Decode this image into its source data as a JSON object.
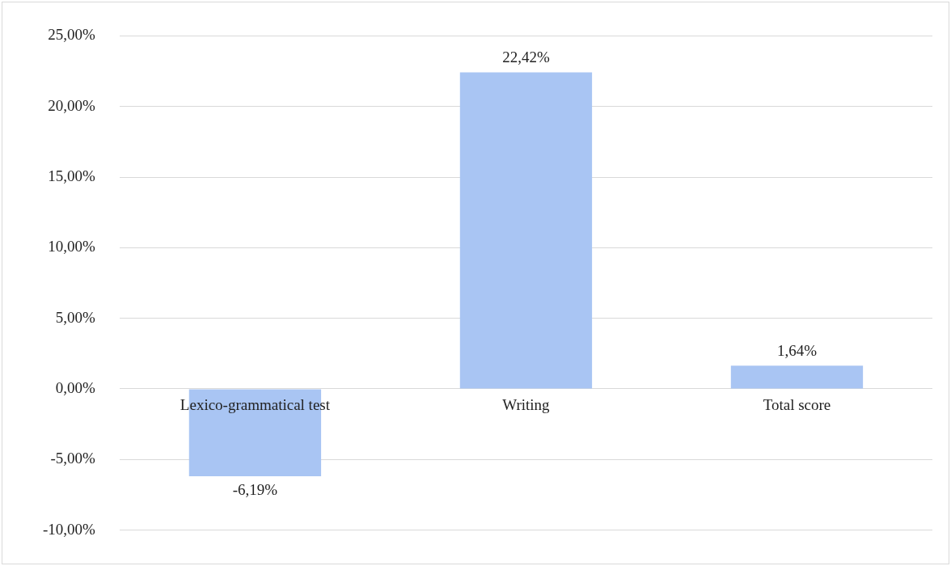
{
  "chart_data": {
    "type": "bar",
    "categories": [
      "Lexico-grammatical test",
      "Writing",
      "Total score"
    ],
    "values": [
      -6.19,
      22.42,
      1.64
    ],
    "color": "#a9c5f3",
    "value_labels": [
      "-6,19%",
      "22,42%",
      "1,64%"
    ],
    "ylim": [
      -10,
      25
    ],
    "yticks": [
      {
        "value": -10,
        "label": "-10,00%"
      },
      {
        "value": -5,
        "label": "-5,00%"
      },
      {
        "value": 0,
        "label": "0,00%"
      },
      {
        "value": 5,
        "label": "5,00%"
      },
      {
        "value": 10,
        "label": "10,00%"
      },
      {
        "value": 15,
        "label": "15,00%"
      },
      {
        "value": 20,
        "label": "20,00%"
      },
      {
        "value": 25,
        "label": "25,00%"
      }
    ],
    "grid": "y",
    "legend": false
  }
}
